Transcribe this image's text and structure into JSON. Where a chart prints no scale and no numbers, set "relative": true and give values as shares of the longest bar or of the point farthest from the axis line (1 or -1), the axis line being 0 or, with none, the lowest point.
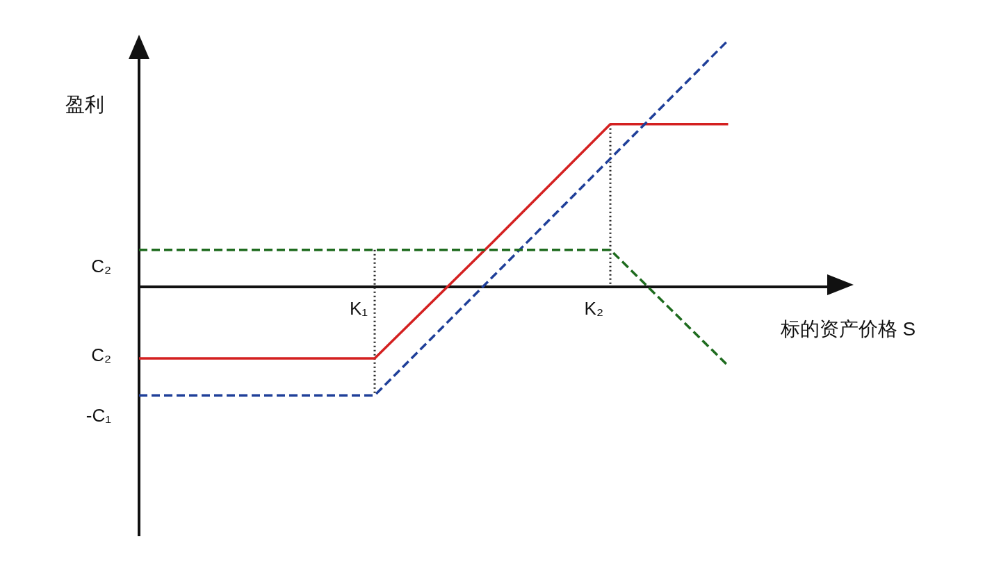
{
  "chart_data": {
    "type": "line",
    "relative": true,
    "xlabel": "标的资产价格 S",
    "ylabel": "盈利",
    "categories": [
      null,
      null,
      "K₁",
      null,
      "K₂",
      null,
      null
    ],
    "series": [
      {
        "color": "#d42020",
        "line_style": "solid",
        "values": [
          -0.29,
          -0.29,
          -0.29,
          0.18,
          0.66,
          0.66,
          null
        ]
      },
      {
        "color": "#1f3f99",
        "line_style": "dashed",
        "values": [
          -0.44,
          -0.44,
          -0.44,
          0.04,
          0.52,
          1.0,
          null
        ]
      },
      {
        "color": "#1e6b1e",
        "line_style": "dashed",
        "values": [
          0.15,
          0.15,
          0.15,
          0.15,
          0.15,
          -0.32,
          null
        ]
      }
    ],
    "ref_lines": [
      {
        "axis": "x",
        "value": "K₁",
        "line_style": "dotted",
        "color": "#222222"
      },
      {
        "axis": "x",
        "value": "K₂",
        "line_style": "dotted",
        "color": "#222222"
      }
    ],
    "annotations": [
      "C₂",
      "C₂",
      "-C₁"
    ],
    "marker": "none"
  }
}
